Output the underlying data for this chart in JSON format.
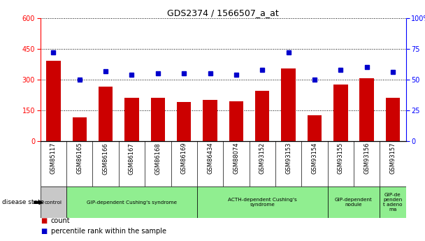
{
  "title": "GDS2374 / 1566507_a_at",
  "samples": [
    "GSM85117",
    "GSM86165",
    "GSM86166",
    "GSM86167",
    "GSM86168",
    "GSM86169",
    "GSM86434",
    "GSM88074",
    "GSM93152",
    "GSM93153",
    "GSM93154",
    "GSM93155",
    "GSM93156",
    "GSM93157"
  ],
  "counts": [
    390,
    115,
    265,
    210,
    210,
    190,
    200,
    195,
    245,
    355,
    125,
    275,
    305,
    210
  ],
  "percentiles": [
    72,
    50,
    57,
    54,
    55,
    55,
    55,
    54,
    58,
    72,
    50,
    58,
    60,
    56
  ],
  "bar_color": "#cc0000",
  "dot_color": "#0000cc",
  "ylim_left": [
    0,
    600
  ],
  "ylim_right": [
    0,
    100
  ],
  "yticks_left": [
    0,
    150,
    300,
    450,
    600
  ],
  "yticks_right": [
    0,
    25,
    50,
    75,
    100
  ],
  "group_defs": [
    {
      "start": 0,
      "end": 1,
      "color": "#c8c8c8",
      "label": "control"
    },
    {
      "start": 1,
      "end": 6,
      "color": "#90ee90",
      "label": "GIP-dependent Cushing's syndrome"
    },
    {
      "start": 6,
      "end": 11,
      "color": "#90ee90",
      "label": "ACTH-dependent Cushing's\nsyndrome"
    },
    {
      "start": 11,
      "end": 13,
      "color": "#90ee90",
      "label": "GIP-dependent\nnodule"
    },
    {
      "start": 13,
      "end": 14,
      "color": "#90ee90",
      "label": "GIP-de\npenden\nt adeno\nma"
    }
  ],
  "legend_labels": [
    "count",
    "percentile rank within the sample"
  ],
  "disease_state_label": "disease state",
  "sample_bg_color": "#d0d0d0",
  "plot_bg_color": "#ffffff"
}
